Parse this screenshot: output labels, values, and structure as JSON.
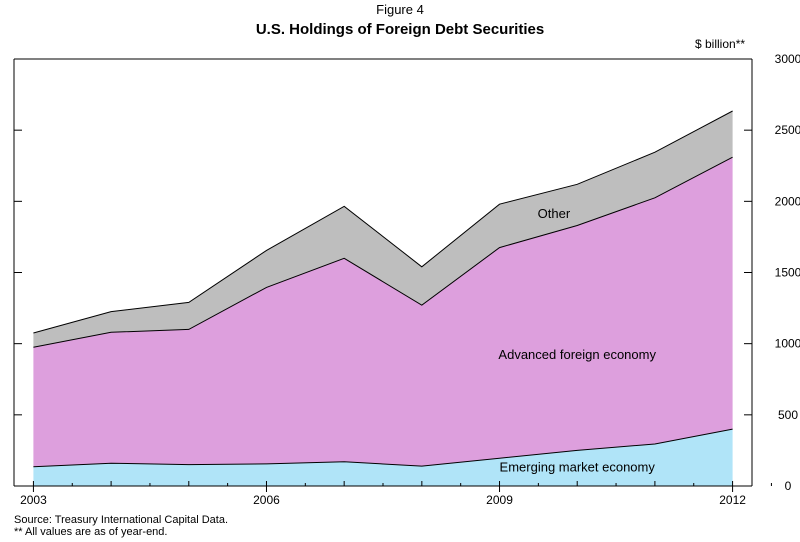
{
  "figure_label": "Figure 4",
  "unit_label": "$ billion**",
  "source_note": "Source: Treasury International Capital Data.",
  "footnote": "** All values are as of year-end.",
  "chart_data": {
    "type": "area",
    "stacked": true,
    "title": "U.S. Holdings of Foreign Debt Securities",
    "x": [
      2003,
      2004,
      2005,
      2006,
      2007,
      2008,
      2009,
      2010,
      2011,
      2012
    ],
    "x_ticks": [
      "2003",
      "2006",
      "2009",
      "2012"
    ],
    "y_ticks": [
      "0",
      "500",
      "1000",
      "1500",
      "2000",
      "2500",
      "3000"
    ],
    "ylim": [
      0,
      3000
    ],
    "xlim": [
      2002.75,
      2012.25
    ],
    "y_axis_position": "right",
    "grid": false,
    "series": [
      {
        "name": "Emerging market economy",
        "values": [
          135,
          160,
          150,
          155,
          170,
          140,
          195,
          250,
          295,
          400
        ],
        "color": "#b0e4f8"
      },
      {
        "name": "Advanced foreign economy",
        "values": [
          840,
          920,
          950,
          1240,
          1430,
          1130,
          1480,
          1580,
          1730,
          1910
        ],
        "color": "#dd9fdd"
      },
      {
        "name": "Other",
        "values": [
          100,
          145,
          190,
          260,
          365,
          270,
          305,
          290,
          320,
          325
        ],
        "color": "#bebebe"
      }
    ]
  }
}
